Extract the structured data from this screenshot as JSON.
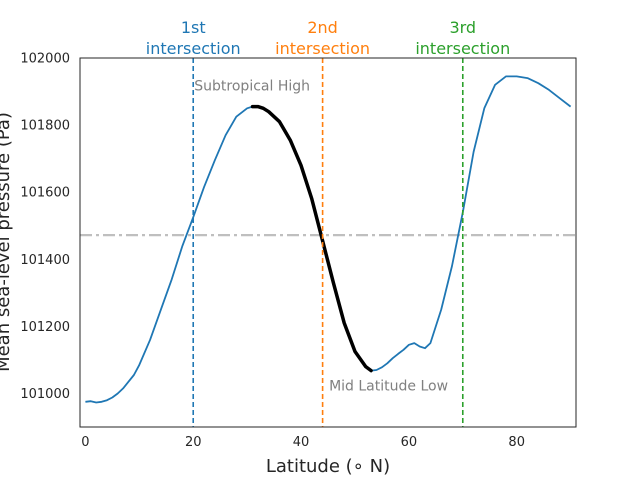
{
  "chart_data": {
    "type": "line",
    "xlabel": "Latitude (∘ N)",
    "ylabel": "Mean sea-level pressure (Pa)",
    "xlim": [
      -1,
      91
    ],
    "ylim": [
      100900,
      102000
    ],
    "xticks": [
      0,
      20,
      40,
      60,
      80
    ],
    "yticks": [
      101000,
      101200,
      101400,
      101600,
      101800,
      102000
    ],
    "grid": false,
    "colors": {
      "curve": "#1f77b4",
      "highlight": "#000000",
      "hline": "#bfbfbf",
      "v1": "#1f77b4",
      "v2": "#ff7f0e",
      "v3": "#2ca02c",
      "annotation": "#808080"
    },
    "series": [
      {
        "x": [
          0,
          1,
          2,
          3,
          4,
          5,
          6,
          7,
          8,
          9,
          10,
          12,
          14,
          16,
          18,
          20,
          22,
          24,
          26,
          28,
          30,
          31,
          32,
          33,
          34,
          36,
          38,
          40,
          42,
          44,
          46,
          48,
          50,
          52,
          53,
          54,
          55,
          56,
          57,
          58,
          59,
          60,
          61,
          62,
          63,
          64,
          66,
          68,
          70,
          72,
          74,
          76,
          78,
          80,
          82,
          84,
          86,
          88,
          90
        ],
        "y": [
          100975,
          100977,
          100973,
          100975,
          100980,
          100988,
          101000,
          101015,
          101035,
          101055,
          101085,
          101160,
          101250,
          101340,
          101440,
          101525,
          101615,
          101695,
          101770,
          101825,
          101850,
          101855,
          101855,
          101850,
          101840,
          101810,
          101755,
          101680,
          101580,
          101455,
          101330,
          101210,
          101125,
          101080,
          101068,
          101070,
          101078,
          101090,
          101105,
          101118,
          101130,
          101145,
          101150,
          101140,
          101135,
          101150,
          101250,
          101380,
          101540,
          101720,
          101850,
          101920,
          101945,
          101945,
          101940,
          101925,
          101905,
          101880,
          101855
        ]
      }
    ],
    "highlight": {
      "x_from": 31,
      "x_to": 53
    },
    "hline": {
      "y": 101472
    },
    "vlines": [
      {
        "x": 20,
        "label_line1": "1st",
        "label_line2": "intersection"
      },
      {
        "x": 44,
        "label_line1": "2nd",
        "label_line2": "intersection"
      },
      {
        "x": 70,
        "label_line1": "3rd",
        "label_line2": "intersection"
      }
    ],
    "annotations": [
      {
        "text": "Subtropical High",
        "x": 20.2,
        "y": 101915
      },
      {
        "text": "Mid Latitude Low",
        "x": 45.2,
        "y": 101020
      }
    ]
  }
}
